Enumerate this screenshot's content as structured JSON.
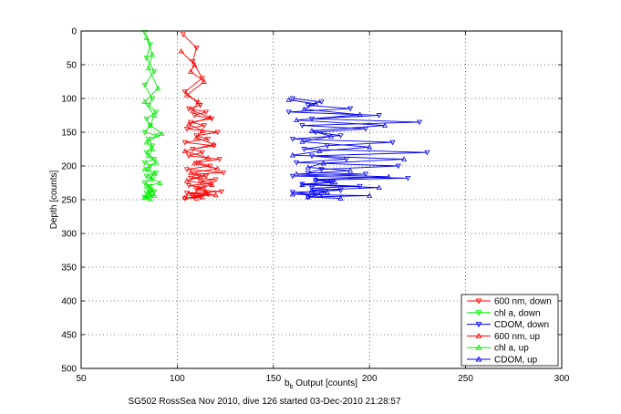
{
  "chart_data": {
    "type": "line",
    "title": "",
    "xlabel_main": "b",
    "xlabel_sub": "b",
    "xlabel_rest": " Output [counts]",
    "ylabel": "Depth [counts]",
    "caption": "SG502 RossSea Nov 2010, dive 126 started 03-Dec-2010 21:28:57",
    "xlim": [
      50,
      300
    ],
    "ylim": [
      500,
      0
    ],
    "xticks": [
      "50",
      "100",
      "150",
      "200",
      "250",
      "300"
    ],
    "yticks": [
      "0",
      "50",
      "100",
      "150",
      "200",
      "250",
      "300",
      "350",
      "400",
      "450",
      "500"
    ],
    "grid": true,
    "legend_position": "bottom-right",
    "series": [
      {
        "name": "600 nm, down",
        "color": "#ff0000",
        "marker": "down",
        "x": [
          103,
          110,
          108,
          113,
          104,
          112,
          106,
          115,
          109,
          118,
          107,
          114,
          105,
          121,
          110,
          116,
          104,
          119,
          108,
          113,
          106,
          122,
          111,
          117,
          105,
          124,
          109,
          115,
          107,
          120,
          112,
          118,
          106,
          114,
          110,
          123,
          105,
          116,
          108,
          112,
          104
        ],
        "y": [
          5,
          25,
          45,
          70,
          90,
          110,
          115,
          120,
          125,
          130,
          135,
          140,
          145,
          150,
          155,
          160,
          165,
          170,
          175,
          180,
          185,
          190,
          195,
          200,
          205,
          210,
          212,
          215,
          218,
          220,
          223,
          226,
          229,
          232,
          235,
          238,
          240,
          242,
          244,
          246,
          248
        ]
      },
      {
        "name": "chl a, down",
        "color": "#00ee00",
        "marker": "down",
        "x": [
          83,
          86,
          84,
          88,
          83,
          87,
          85,
          89,
          84,
          86,
          83,
          90,
          85,
          87,
          84,
          88,
          83,
          86,
          85,
          89,
          84,
          87,
          83,
          86,
          85,
          88,
          84,
          87,
          83,
          85
        ],
        "y": [
          2,
          20,
          40,
          60,
          80,
          100,
          110,
          120,
          130,
          140,
          150,
          155,
          160,
          170,
          180,
          190,
          195,
          200,
          205,
          210,
          215,
          220,
          225,
          230,
          235,
          238,
          240,
          243,
          246,
          248
        ]
      },
      {
        "name": "CDOM, down",
        "color": "#0000ee",
        "marker": "down",
        "x": [
          160,
          175,
          168,
          190,
          158,
          205,
          170,
          226,
          165,
          198,
          172,
          185,
          160,
          212,
          178,
          166,
          230,
          170,
          188,
          162,
          215,
          175,
          168,
          198,
          160,
          220,
          172,
          180,
          165,
          195,
          170,
          185,
          160,
          175,
          168
        ],
        "y": [
          100,
          105,
          110,
          115,
          120,
          125,
          130,
          135,
          140,
          145,
          150,
          155,
          160,
          165,
          170,
          175,
          180,
          185,
          190,
          195,
          200,
          205,
          210,
          212,
          215,
          218,
          221,
          224,
          227,
          230,
          233,
          236,
          239,
          242,
          246
        ]
      },
      {
        "name": "600 nm, up",
        "color": "#ff0000",
        "marker": "up",
        "x": [
          102,
          109,
          107,
          114,
          105,
          111,
          108,
          117,
          106,
          113,
          110,
          119,
          104,
          116,
          109,
          121,
          107,
          112,
          105,
          118,
          111,
          115,
          106,
          120,
          108,
          113,
          104,
          110
        ],
        "y": [
          30,
          50,
          60,
          75,
          95,
          105,
          118,
          128,
          138,
          148,
          158,
          168,
          178,
          188,
          196,
          204,
          210,
          216,
          222,
          228,
          233,
          238,
          241,
          243,
          245,
          246,
          247,
          248
        ]
      },
      {
        "name": "chl a, up",
        "color": "#00ee00",
        "marker": "up",
        "x": [
          84,
          87,
          85,
          90,
          83,
          88,
          86,
          92,
          84,
          87,
          85,
          89,
          83,
          88,
          86,
          91,
          84,
          87,
          85,
          88,
          83,
          86
        ],
        "y": [
          10,
          35,
          55,
          85,
          105,
          125,
          140,
          152,
          165,
          175,
          185,
          195,
          205,
          212,
          218,
          225,
          230,
          235,
          240,
          244,
          247,
          249
        ]
      },
      {
        "name": "CDOM, up",
        "color": "#0000ee",
        "marker": "up",
        "x": [
          158,
          172,
          166,
          195,
          162,
          208,
          170,
          180,
          165,
          200,
          174,
          160,
          218,
          176,
          168,
          190,
          162,
          210,
          172,
          182,
          165,
          205,
          170,
          178,
          160,
          200,
          168,
          185
        ],
        "y": [
          102,
          108,
          116,
          124,
          132,
          140,
          148,
          156,
          164,
          172,
          178,
          184,
          190,
          196,
          202,
          207,
          212,
          216,
          220,
          224,
          228,
          232,
          236,
          239,
          242,
          244,
          246,
          248
        ]
      }
    ]
  }
}
